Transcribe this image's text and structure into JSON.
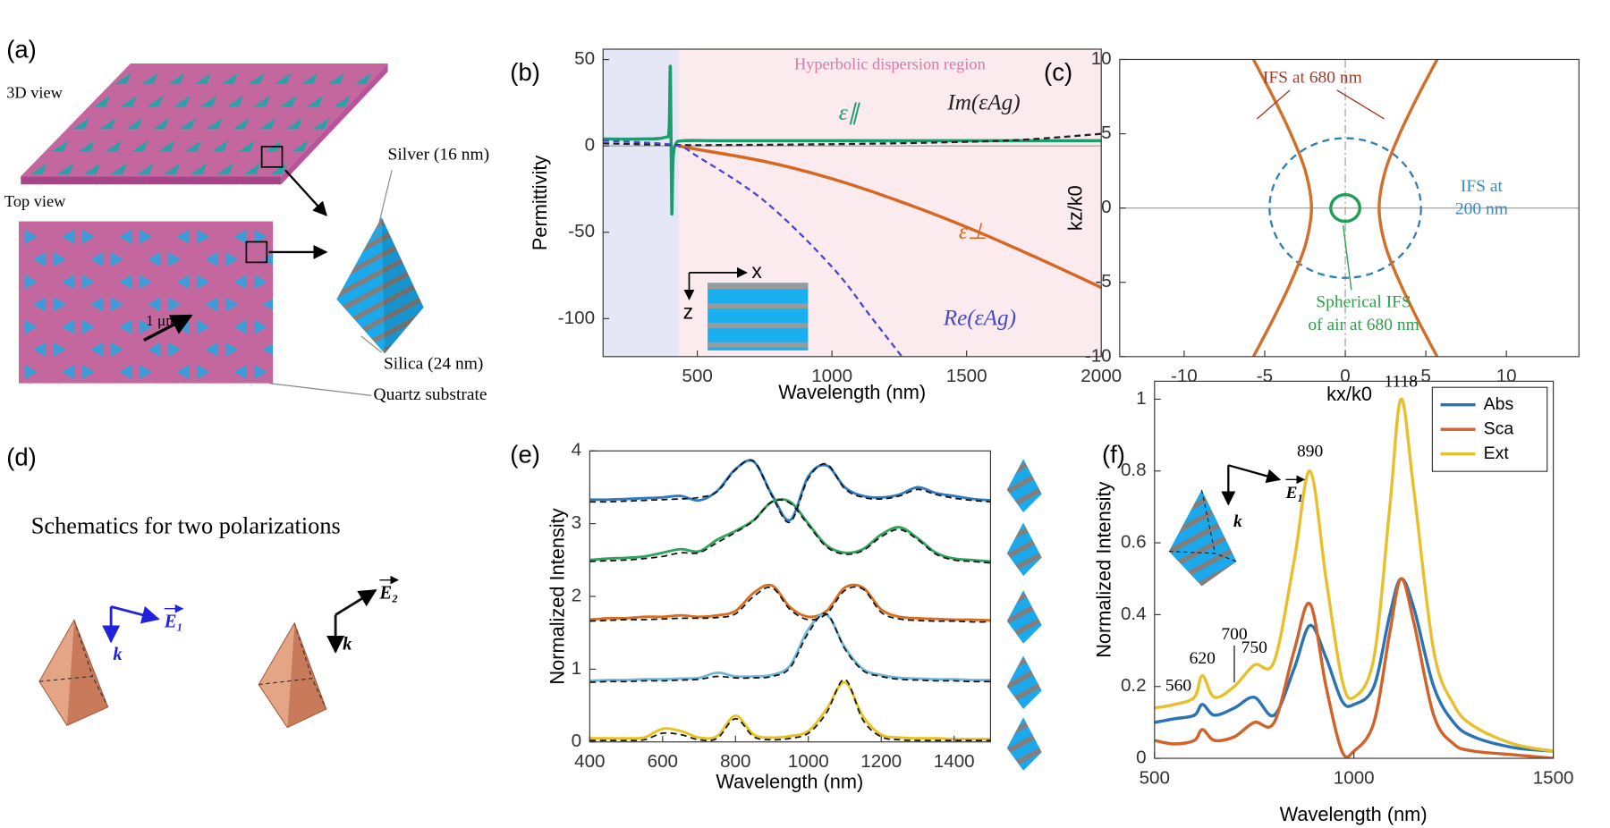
{
  "figure": {
    "a": {
      "label": "(a)",
      "view_3d": "3D view",
      "view_top": "Top view",
      "silver": "Silver (16 nm)",
      "silica": "Silica (24 nm)",
      "scale": "1 μm",
      "substrate": "Quartz substrate"
    },
    "d": {
      "label": "(d)",
      "caption": "Schematics for two polarizations",
      "pol1": [
        "E₁",
        "k"
      ],
      "pol2": [
        "E₂",
        "k"
      ]
    }
  },
  "chart_data": [
    {
      "type": "line",
      "label": "(b)",
      "xlabel": "Wavelength (nm)",
      "ylabel": "Permittivity",
      "xlim": [
        150,
        2000
      ],
      "ylim": [
        -122,
        56
      ],
      "xticks": [
        500,
        1000,
        1500,
        2000
      ],
      "yticks": [
        -100,
        -50,
        0,
        50
      ],
      "regions": [
        {
          "xlim": [
            150,
            430
          ],
          "color": "#e5e7f6"
        },
        {
          "xlim": [
            430,
            2000
          ],
          "color": "#fbeaee",
          "text": "Hyperbolic dispersion region",
          "text_color": "#d77aa6"
        }
      ],
      "series": [
        {
          "name": "ε∥",
          "color": "#1a9e6e",
          "x": [
            150,
            300,
            380,
            395,
            400,
            405,
            410,
            420,
            450,
            600,
            1000,
            1500,
            2000
          ],
          "values": [
            4,
            4,
            5,
            10,
            45,
            -38,
            -8,
            1,
            3,
            3,
            3,
            3,
            3
          ]
        },
        {
          "name": "Im(εAg)",
          "color": "#222222",
          "dashed": true,
          "x": [
            150,
            430,
            600,
            1000,
            1400,
            1700,
            2000
          ],
          "values": [
            1.5,
            0.5,
            0.5,
            1,
            2,
            3.5,
            7
          ]
        },
        {
          "name": "ε⊥",
          "color": "#d9661f",
          "x": [
            430,
            500,
            750,
            1000,
            1250,
            1500,
            1750,
            2000
          ],
          "values": [
            0,
            -2,
            -9,
            -19,
            -32,
            -47,
            -64,
            -82
          ]
        },
        {
          "name": "Re(εAg)",
          "color": "#4848cc",
          "dashed": true,
          "x": [
            150,
            300,
            430,
            500,
            750,
            1000,
            1150,
            1300
          ],
          "values": [
            3,
            2,
            0,
            -6,
            -32,
            -70,
            -100,
            -130
          ]
        }
      ],
      "inset_labels": [
        "x",
        "z"
      ]
    },
    {
      "type": "line",
      "label": "(c)",
      "xlabel": "kx/k0",
      "ylabel": "kz/k0",
      "xlim": [
        -14,
        14.5
      ],
      "ylim": [
        -10,
        10
      ],
      "xticks": [
        -10,
        -5,
        0,
        5,
        10
      ],
      "yticks": [
        -10,
        -5,
        0,
        5,
        10
      ],
      "zero_lines": true,
      "series": [
        {
          "color": "#d0702a",
          "x": [
            5.7,
            4.49,
            3.38,
            2.48,
            2.1,
            2.48,
            3.38,
            4.49,
            5.7
          ],
          "values": [
            -10,
            -7.5,
            -5,
            -2.5,
            0,
            2.5,
            5,
            7.5,
            10
          ]
        },
        {
          "color": "#d0702a",
          "x": [
            -5.7,
            -4.49,
            -3.38,
            -2.48,
            -2.1,
            -2.48,
            -3.38,
            -4.49,
            -5.7
          ],
          "values": [
            -10,
            -7.5,
            -5,
            -2.5,
            0,
            2.5,
            5,
            7.5,
            10
          ]
        }
      ],
      "circles": [
        {
          "center": [
            0,
            0
          ],
          "radius": 4.7,
          "color": "#2f7fb5",
          "dashed": true
        },
        {
          "center": [
            0,
            0
          ],
          "radius": 0.9,
          "color": "#1f9e5a"
        }
      ],
      "annotations": [
        {
          "lines": [
            "IFS at 680 nm"
          ],
          "color": "#a83a2a"
        },
        {
          "lines": [
            "IFS at",
            "200 nm"
          ],
          "color": "#3a8ac0"
        },
        {
          "lines": [
            "Spherical IFS",
            "of air at 680 nm"
          ],
          "color": "#2e9e4a"
        }
      ]
    },
    {
      "type": "line",
      "label": "(e)",
      "xlabel": "Wavelength (nm)",
      "ylabel": "Normalized Intensity",
      "xlim": [
        400,
        1500
      ],
      "ylim": [
        0,
        4
      ],
      "xticks": [
        400,
        600,
        800,
        1000,
        1200,
        1400
      ],
      "yticks": [
        0,
        1,
        2,
        3,
        4
      ],
      "x": [
        400,
        450,
        500,
        550,
        600,
        650,
        700,
        750,
        800,
        850,
        900,
        950,
        1000,
        1050,
        1100,
        1150,
        1200,
        1250,
        1300,
        1350,
        1400,
        1450,
        1500
      ],
      "series": [
        {
          "color": "#2f7bbf",
          "values": [
            3.33,
            3.33,
            3.34,
            3.35,
            3.36,
            3.38,
            3.32,
            3.45,
            3.75,
            3.85,
            3.4,
            3.05,
            3.65,
            3.8,
            3.5,
            3.38,
            3.36,
            3.4,
            3.5,
            3.42,
            3.38,
            3.34,
            3.32
          ]
        },
        {
          "color": "#2ea35f",
          "values": [
            2.5,
            2.52,
            2.53,
            2.55,
            2.6,
            2.65,
            2.62,
            2.78,
            2.9,
            3.05,
            3.3,
            3.3,
            3.0,
            2.7,
            2.6,
            2.65,
            2.85,
            2.95,
            2.8,
            2.6,
            2.52,
            2.5,
            2.48
          ]
        },
        {
          "color": "#d96e1f",
          "values": [
            1.68,
            1.7,
            1.7,
            1.72,
            1.72,
            1.74,
            1.72,
            1.74,
            1.8,
            2.05,
            2.15,
            1.85,
            1.72,
            1.8,
            2.12,
            2.12,
            1.82,
            1.72,
            1.7,
            1.69,
            1.68,
            1.68,
            1.67
          ]
        },
        {
          "color": "#6fb6d9",
          "values": [
            0.84,
            0.85,
            0.85,
            0.86,
            0.86,
            0.87,
            0.88,
            0.95,
            0.9,
            0.9,
            0.92,
            1.05,
            1.55,
            1.75,
            1.3,
            1.0,
            0.92,
            0.88,
            0.87,
            0.86,
            0.86,
            0.85,
            0.85
          ]
        },
        {
          "color": "#e8c21a",
          "values": [
            0.05,
            0.05,
            0.05,
            0.06,
            0.18,
            0.15,
            0.06,
            0.08,
            0.36,
            0.1,
            0.06,
            0.08,
            0.15,
            0.45,
            0.82,
            0.35,
            0.1,
            0.06,
            0.05,
            0.05,
            0.04,
            0.04,
            0.04
          ]
        },
        {
          "color": "#111111",
          "dashed": true,
          "values": [
            3.3,
            3.3,
            3.31,
            3.32,
            3.33,
            3.34,
            3.36,
            3.44,
            3.74,
            3.86,
            3.38,
            3.02,
            3.62,
            3.82,
            3.48,
            3.36,
            3.34,
            3.38,
            3.47,
            3.4,
            3.35,
            3.32,
            3.3
          ]
        },
        {
          "color": "#111111",
          "dashed": true,
          "values": [
            2.48,
            2.49,
            2.5,
            2.52,
            2.55,
            2.6,
            2.6,
            2.74,
            2.88,
            3.04,
            3.3,
            3.28,
            2.98,
            2.68,
            2.58,
            2.63,
            2.82,
            2.92,
            2.78,
            2.58,
            2.5,
            2.48,
            2.46
          ]
        },
        {
          "color": "#111111",
          "dashed": true,
          "values": [
            1.66,
            1.67,
            1.68,
            1.68,
            1.69,
            1.7,
            1.7,
            1.71,
            1.76,
            2.0,
            2.12,
            1.82,
            1.68,
            1.76,
            2.08,
            2.1,
            1.78,
            1.69,
            1.67,
            1.66,
            1.66,
            1.65,
            1.65
          ]
        },
        {
          "color": "#111111",
          "dashed": true,
          "values": [
            0.82,
            0.83,
            0.83,
            0.84,
            0.84,
            0.85,
            0.86,
            0.9,
            0.88,
            0.88,
            0.9,
            1.02,
            1.5,
            1.76,
            1.28,
            0.98,
            0.9,
            0.86,
            0.85,
            0.84,
            0.84,
            0.83,
            0.83
          ]
        },
        {
          "color": "#111111",
          "dashed": true,
          "values": [
            0.02,
            0.02,
            0.02,
            0.03,
            0.12,
            0.1,
            0.03,
            0.05,
            0.32,
            0.07,
            0.03,
            0.05,
            0.12,
            0.4,
            0.86,
            0.3,
            0.07,
            0.03,
            0.02,
            0.02,
            0.02,
            0.02,
            0.02
          ]
        }
      ]
    },
    {
      "type": "line",
      "label": "(f)",
      "xlabel": "Wavelength (nm)",
      "ylabel": "Normalized Intensity",
      "xlim": [
        500,
        1500
      ],
      "ylim": [
        0,
        1.05
      ],
      "xticks": [
        500,
        1000,
        1500
      ],
      "yticks": [
        0,
        0.2,
        0.4,
        0.6,
        0.8,
        1
      ],
      "x": [
        500,
        550,
        600,
        620,
        650,
        700,
        750,
        800,
        850,
        890,
        930,
        970,
        1000,
        1050,
        1090,
        1118,
        1150,
        1200,
        1250,
        1300,
        1400,
        1500
      ],
      "series": [
        {
          "name": "Abs",
          "color": "#2a74b5",
          "values": [
            0.1,
            0.11,
            0.12,
            0.15,
            0.12,
            0.14,
            0.17,
            0.12,
            0.25,
            0.37,
            0.28,
            0.16,
            0.15,
            0.2,
            0.4,
            0.5,
            0.42,
            0.2,
            0.1,
            0.06,
            0.03,
            0.02
          ]
        },
        {
          "name": "Sca",
          "color": "#d0622a",
          "values": [
            0.05,
            0.04,
            0.05,
            0.08,
            0.05,
            0.06,
            0.1,
            0.1,
            0.3,
            0.43,
            0.2,
            0.02,
            0.02,
            0.1,
            0.35,
            0.5,
            0.38,
            0.12,
            0.04,
            0.02,
            0.01,
            0
          ]
        },
        {
          "name": "Ext",
          "color": "#e7c12d",
          "values": [
            0.14,
            0.15,
            0.17,
            0.23,
            0.17,
            0.2,
            0.26,
            0.27,
            0.55,
            0.8,
            0.5,
            0.22,
            0.17,
            0.28,
            0.7,
            1.0,
            0.75,
            0.3,
            0.15,
            0.09,
            0.04,
            0.02
          ]
        }
      ],
      "legend": "northeast",
      "peak_labels": [
        560,
        620,
        700,
        750,
        890,
        1118
      ],
      "inset_labels": [
        "E₁",
        "k"
      ]
    }
  ]
}
